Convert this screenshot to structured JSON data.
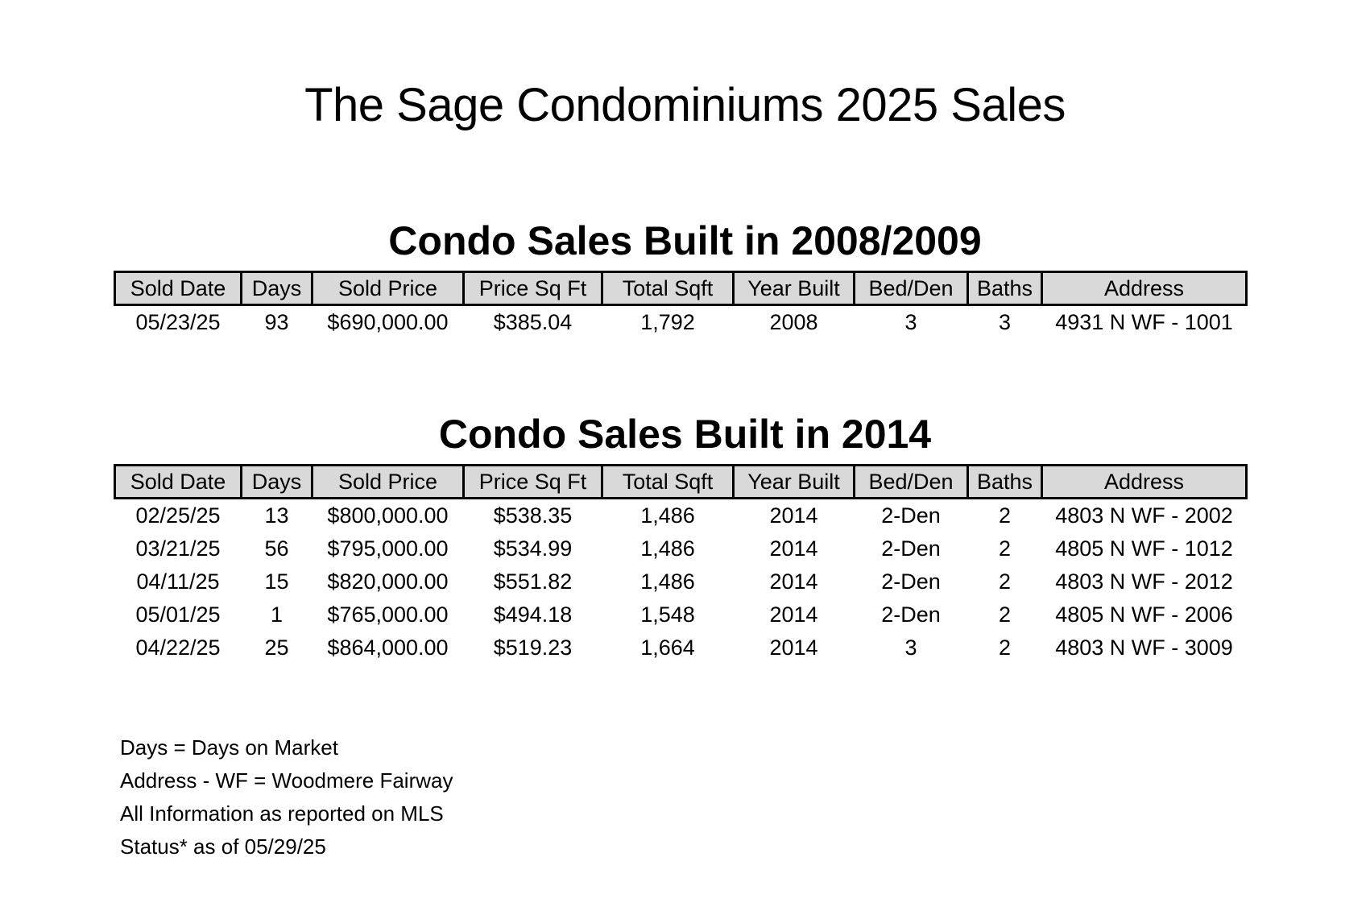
{
  "title": "The Sage Condominiums 2025 Sales",
  "columns": [
    "Sold Date",
    "Days",
    "Sold Price",
    "Price Sq Ft",
    "Total Sqft",
    "Year Built",
    "Bed/Den",
    "Baths",
    "Address"
  ],
  "sections": [
    {
      "title": "Condo Sales Built in 2008/2009",
      "rows": [
        [
          "05/23/25",
          "93",
          "$690,000.00",
          "$385.04",
          "1,792",
          "2008",
          "3",
          "3",
          "4931 N WF - 1001"
        ]
      ]
    },
    {
      "title": "Condo Sales Built in 2014",
      "rows": [
        [
          "02/25/25",
          "13",
          "$800,000.00",
          "$538.35",
          "1,486",
          "2014",
          "2-Den",
          "2",
          "4803 N WF - 2002"
        ],
        [
          "03/21/25",
          "56",
          "$795,000.00",
          "$534.99",
          "1,486",
          "2014",
          "2-Den",
          "2",
          "4805 N WF - 1012"
        ],
        [
          "04/11/25",
          "15",
          "$820,000.00",
          "$551.82",
          "1,486",
          "2014",
          "2-Den",
          "2",
          "4803 N WF - 2012"
        ],
        [
          "05/01/25",
          "1",
          "$765,000.00",
          "$494.18",
          "1,548",
          "2014",
          "2-Den",
          "2",
          "4805 N WF - 2006"
        ],
        [
          "04/22/25",
          "25",
          "$864,000.00",
          "$519.23",
          "1,664",
          "2014",
          "3",
          "2",
          "4803 N WF - 3009"
        ]
      ]
    }
  ],
  "notes": [
    "Days = Days on Market",
    "Address - WF = Woodmere Fairway",
    "All Information as reported on MLS",
    "Status* as of 05/29/25"
  ],
  "colors": {
    "header_background": "#d9d9d9",
    "border": "#000000",
    "text": "#000000"
  }
}
